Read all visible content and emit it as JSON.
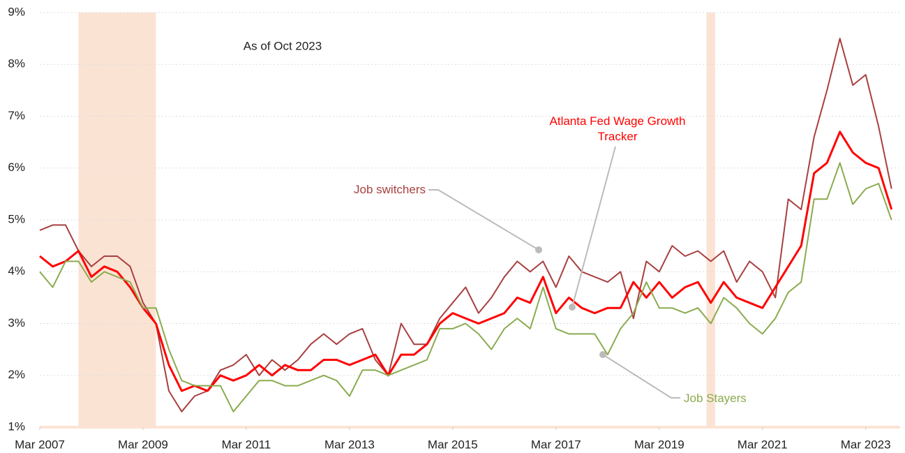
{
  "chart_data": {
    "type": "line",
    "annotation": "As of Oct 2023",
    "x": [
      "2007-03",
      "2007-06",
      "2007-09",
      "2007-12",
      "2008-03",
      "2008-06",
      "2008-09",
      "2008-12",
      "2009-03",
      "2009-06",
      "2009-09",
      "2009-12",
      "2010-03",
      "2010-06",
      "2010-09",
      "2010-12",
      "2011-03",
      "2011-06",
      "2011-09",
      "2011-12",
      "2012-03",
      "2012-06",
      "2012-09",
      "2012-12",
      "2013-03",
      "2013-06",
      "2013-09",
      "2013-12",
      "2014-03",
      "2014-06",
      "2014-09",
      "2014-12",
      "2015-03",
      "2015-06",
      "2015-09",
      "2015-12",
      "2016-03",
      "2016-06",
      "2016-09",
      "2016-12",
      "2017-03",
      "2017-06",
      "2017-09",
      "2017-12",
      "2018-03",
      "2018-06",
      "2018-09",
      "2018-12",
      "2019-03",
      "2019-06",
      "2019-09",
      "2019-12",
      "2020-03",
      "2020-06",
      "2020-09",
      "2020-12",
      "2021-03",
      "2021-06",
      "2021-09",
      "2021-12",
      "2022-03",
      "2022-06",
      "2022-09",
      "2022-12",
      "2023-03",
      "2023-06",
      "2023-09"
    ],
    "series": [
      {
        "name": "Job switchers",
        "color": "#a83f3f",
        "values": [
          4.8,
          4.9,
          4.9,
          4.4,
          4.1,
          4.3,
          4.3,
          4.1,
          3.4,
          3.0,
          1.7,
          1.3,
          1.6,
          1.7,
          2.1,
          2.2,
          2.4,
          2.0,
          2.3,
          2.1,
          2.3,
          2.6,
          2.8,
          2.6,
          2.8,
          2.9,
          2.3,
          2.0,
          3.0,
          2.6,
          2.6,
          3.1,
          3.4,
          3.7,
          3.2,
          3.5,
          3.9,
          4.2,
          4.0,
          4.2,
          3.7,
          4.3,
          4.0,
          3.9,
          3.8,
          4.0,
          3.1,
          4.2,
          4.0,
          4.5,
          4.3,
          4.4,
          4.2,
          4.4,
          3.8,
          4.2,
          4.0,
          3.5,
          5.4,
          5.2,
          6.6,
          7.5,
          8.5,
          7.6,
          7.8,
          6.8,
          5.6
        ]
      },
      {
        "name": "Atlanta Fed Wage Growth Tracker",
        "color": "#ff0000",
        "values": [
          4.3,
          4.1,
          4.2,
          4.4,
          3.9,
          4.1,
          4.0,
          3.7,
          3.3,
          3.0,
          2.2,
          1.7,
          1.8,
          1.7,
          2.0,
          1.9,
          2.0,
          2.2,
          2.0,
          2.2,
          2.1,
          2.1,
          2.3,
          2.3,
          2.2,
          2.3,
          2.4,
          2.0,
          2.4,
          2.4,
          2.6,
          3.0,
          3.2,
          3.1,
          3.0,
          3.1,
          3.2,
          3.5,
          3.4,
          3.9,
          3.2,
          3.5,
          3.3,
          3.2,
          3.3,
          3.3,
          3.8,
          3.5,
          3.8,
          3.5,
          3.7,
          3.8,
          3.4,
          3.8,
          3.5,
          3.4,
          3.3,
          3.7,
          4.1,
          4.5,
          5.9,
          6.1,
          6.7,
          6.3,
          6.1,
          6.0,
          5.2
        ]
      },
      {
        "name": "Job Stayers",
        "color": "#8aab4f",
        "values": [
          4.0,
          3.7,
          4.2,
          4.2,
          3.8,
          4.0,
          3.9,
          3.8,
          3.3,
          3.3,
          2.5,
          1.9,
          1.8,
          1.8,
          1.8,
          1.3,
          1.6,
          1.9,
          1.9,
          1.8,
          1.8,
          1.9,
          2.0,
          1.9,
          1.6,
          2.1,
          2.1,
          2.0,
          2.1,
          2.2,
          2.3,
          2.9,
          2.9,
          3.0,
          2.8,
          2.5,
          2.9,
          3.1,
          2.9,
          3.7,
          2.9,
          2.8,
          2.8,
          2.8,
          2.4,
          2.9,
          3.2,
          3.8,
          3.3,
          3.3,
          3.2,
          3.3,
          3.0,
          3.5,
          3.3,
          3.0,
          2.8,
          3.1,
          3.6,
          3.8,
          5.4,
          5.4,
          6.1,
          5.3,
          5.6,
          5.7,
          5.0
        ]
      }
    ],
    "recessions": [
      [
        "2007-12",
        "2009-06"
      ],
      [
        "2020-02",
        "2020-04"
      ]
    ],
    "xlim": [
      "2007-03",
      "2023-11"
    ],
    "xticks": [
      {
        "value": "2007-03",
        "label": "Mar 2007"
      },
      {
        "value": "2009-03",
        "label": "Mar 2009"
      },
      {
        "value": "2011-03",
        "label": "Mar 2011"
      },
      {
        "value": "2013-03",
        "label": "Mar 2013"
      },
      {
        "value": "2015-03",
        "label": "Mar 2015"
      },
      {
        "value": "2017-03",
        "label": "Mar 2017"
      },
      {
        "value": "2019-03",
        "label": "Mar 2019"
      },
      {
        "value": "2021-03",
        "label": "Mar 2021"
      },
      {
        "value": "2023-03",
        "label": "Mar 2023"
      }
    ],
    "ylim": [
      1,
      9
    ],
    "yticks": [
      {
        "value": 1,
        "label": "1%"
      },
      {
        "value": 2,
        "label": "2%"
      },
      {
        "value": 3,
        "label": "3%"
      },
      {
        "value": 4,
        "label": "4%"
      },
      {
        "value": 5,
        "label": "5%"
      },
      {
        "value": 6,
        "label": "6%"
      },
      {
        "value": 7,
        "label": "7%"
      },
      {
        "value": 8,
        "label": "8%"
      },
      {
        "value": 9,
        "label": "9%"
      }
    ],
    "grid": true
  }
}
